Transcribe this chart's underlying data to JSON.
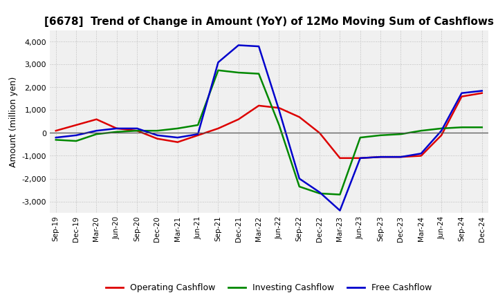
{
  "title": "[6678]  Trend of Change in Amount (YoY) of 12Mo Moving Sum of Cashflows",
  "ylabel": "Amount (million yen)",
  "x_labels": [
    "Sep-19",
    "Dec-19",
    "Mar-20",
    "Jun-20",
    "Sep-20",
    "Dec-20",
    "Mar-21",
    "Jun-21",
    "Sep-21",
    "Dec-21",
    "Mar-22",
    "Jun-22",
    "Sep-22",
    "Dec-22",
    "Mar-23",
    "Jun-23",
    "Sep-23",
    "Dec-23",
    "Mar-24",
    "Jun-24",
    "Sep-24",
    "Dec-24"
  ],
  "operating": [
    100,
    350,
    600,
    200,
    100,
    -250,
    -400,
    -100,
    200,
    600,
    1200,
    1100,
    700,
    0,
    -1100,
    -1100,
    -1050,
    -1050,
    -1000,
    -100,
    1600,
    1750
  ],
  "investing": [
    -300,
    -350,
    -50,
    50,
    100,
    100,
    200,
    350,
    2750,
    2650,
    2600,
    350,
    -2350,
    -2650,
    -2700,
    -200,
    -100,
    -50,
    100,
    200,
    250,
    250
  ],
  "free": [
    -200,
    -100,
    100,
    200,
    200,
    -100,
    -200,
    -50,
    3100,
    3850,
    3800,
    1000,
    -2000,
    -2600,
    -3400,
    -1100,
    -1050,
    -1050,
    -900,
    100,
    1750,
    1850
  ],
  "ylim": [
    -3500,
    4500
  ],
  "yticks": [
    -3000,
    -2000,
    -1000,
    0,
    1000,
    2000,
    3000,
    4000
  ],
  "operating_color": "#dd0000",
  "investing_color": "#008800",
  "free_color": "#0000cc",
  "background_color": "#ffffff",
  "plot_bg_color": "#f0f0f0",
  "grid_color": "#bbbbbb"
}
